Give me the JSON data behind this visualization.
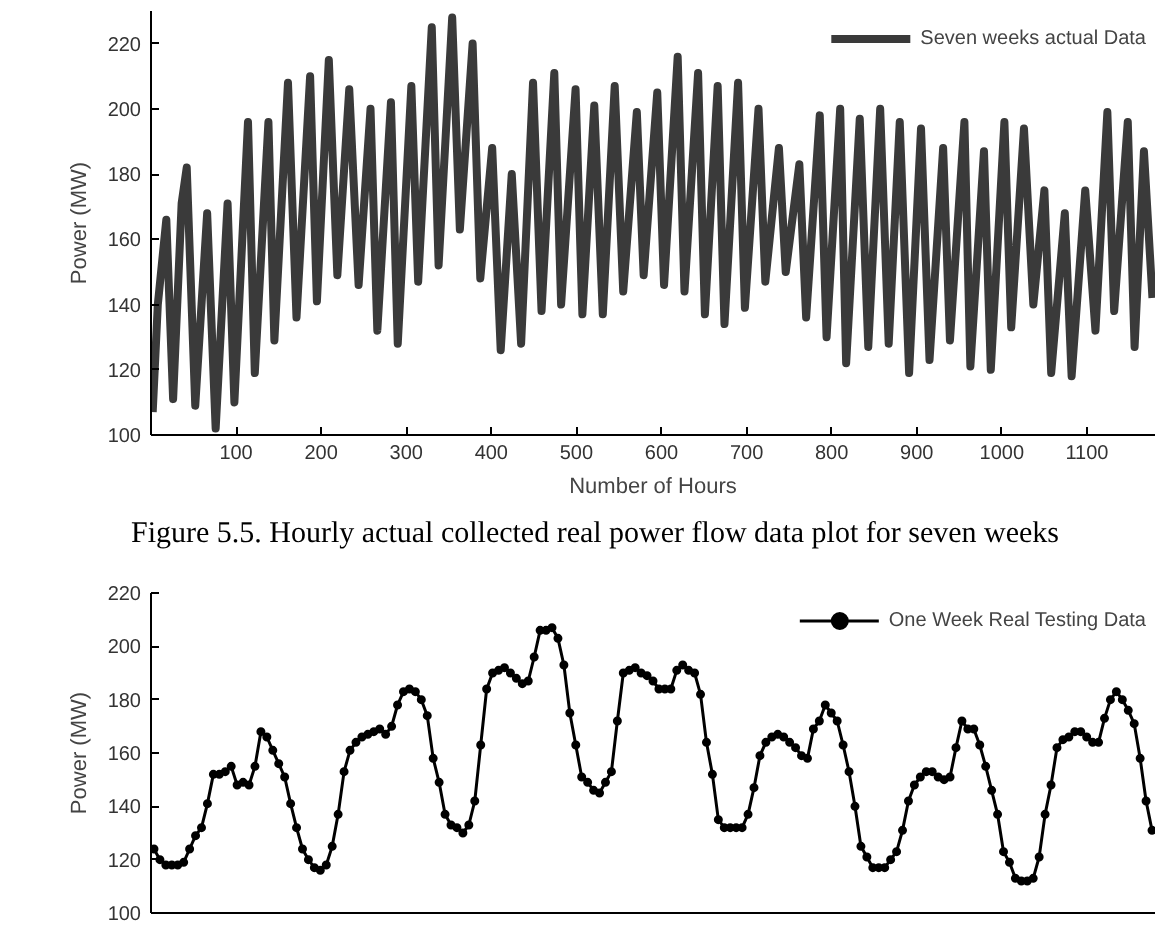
{
  "chart_data": [
    {
      "type": "line",
      "x": [
        2,
        8,
        18,
        26,
        36,
        42,
        52,
        66,
        76,
        90,
        98,
        114,
        122,
        138,
        145,
        161,
        171,
        187,
        195,
        209,
        219,
        233,
        244,
        258,
        266,
        282,
        290,
        306,
        314,
        330,
        338,
        354,
        363,
        378,
        387,
        401,
        411,
        424,
        435,
        449,
        459,
        474,
        482,
        499,
        507,
        521,
        531,
        545,
        555,
        571,
        579,
        595,
        603,
        619,
        627,
        643,
        651,
        666,
        674,
        690,
        698,
        714,
        722,
        738,
        746,
        762,
        770,
        786,
        794,
        810,
        817,
        833,
        843,
        857,
        867,
        880,
        891,
        905,
        915,
        931,
        939,
        956,
        963,
        979,
        987,
        1003,
        1011,
        1026,
        1037,
        1050,
        1058,
        1074,
        1082,
        1098,
        1110,
        1124,
        1132,
        1148,
        1156,
        1167,
        1177
      ],
      "series": [
        {
          "name": "Seven weeks actual Data",
          "color": "#3a3a3a",
          "values": [
            107,
            140,
            166,
            111,
            171,
            182,
            109,
            168,
            102,
            171,
            110,
            196,
            119,
            196,
            129,
            208,
            136,
            210,
            141,
            215,
            149,
            206,
            146,
            200,
            132,
            202,
            128,
            207,
            147,
            225,
            152,
            228,
            163,
            220,
            148,
            188,
            126,
            180,
            128,
            208,
            138,
            211,
            140,
            206,
            137,
            201,
            137,
            207,
            144,
            199,
            149,
            205,
            146,
            216,
            144,
            211,
            137,
            207,
            134,
            208,
            139,
            200,
            147,
            188,
            150,
            183,
            136,
            198,
            130,
            200,
            122,
            197,
            127,
            200,
            128,
            196,
            119,
            194,
            123,
            188,
            129,
            196,
            121,
            187,
            120,
            196,
            133,
            194,
            140,
            175,
            119,
            168,
            118,
            175,
            132,
            199,
            138,
            196,
            127,
            187,
            142
          ]
        }
      ],
      "xlabel": "Number of Hours",
      "ylabel": "Power (MW)",
      "xlim": [
        0,
        1180
      ],
      "ylim": [
        100,
        230
      ],
      "xticks": [
        100,
        200,
        300,
        400,
        500,
        600,
        700,
        800,
        900,
        1000,
        1100
      ],
      "yticks": [
        100,
        120,
        140,
        160,
        180,
        200,
        220
      ],
      "grid": false,
      "legend": "top right",
      "marker": "none",
      "line_style": "solid",
      "annotations": [
        "Figure 5.5. Hourly actual collected real power flow data plot for seven weeks"
      ]
    },
    {
      "type": "line",
      "categories": [
        null,
        null,
        null,
        null,
        null,
        null,
        null,
        null,
        null,
        null,
        null,
        null,
        null,
        null,
        null,
        null,
        null,
        null,
        null,
        null,
        null,
        null,
        null,
        null,
        null,
        null,
        null,
        null,
        null,
        null,
        null,
        null,
        null,
        null,
        null,
        null,
        null,
        null,
        null,
        null,
        null,
        null,
        null,
        null,
        null,
        null,
        null,
        null,
        null,
        null,
        null,
        null,
        null,
        null,
        null,
        null,
        null,
        null,
        null,
        null,
        null,
        null,
        null,
        null,
        null,
        null,
        null,
        null,
        null,
        null,
        null,
        null,
        null,
        null,
        null,
        null,
        null,
        null,
        null,
        null,
        null,
        null,
        null,
        null,
        null,
        null,
        null,
        null,
        null,
        null,
        null,
        null,
        null,
        null,
        null,
        null,
        null,
        null,
        null,
        null,
        null,
        null,
        null,
        null,
        null,
        null,
        null,
        null,
        null,
        null,
        null,
        null,
        null,
        null,
        null,
        null,
        null,
        null,
        null,
        null,
        null,
        null,
        null,
        null,
        null,
        null,
        null,
        null,
        null,
        null,
        null,
        null,
        null,
        null,
        null,
        null,
        null,
        null,
        null,
        null,
        null,
        null,
        null,
        null,
        null,
        null,
        null,
        null,
        null,
        null,
        null,
        null,
        null,
        null,
        null,
        null,
        null,
        null,
        null,
        null,
        null,
        null,
        null,
        null,
        null,
        null,
        null,
        null,
        null
      ],
      "series": [
        {
          "name": "One Week Real Testing Data",
          "color": "#000000",
          "values": [
            124,
            120,
            118,
            118,
            118,
            119,
            124,
            129,
            132,
            141,
            152,
            152,
            153,
            155,
            148,
            149,
            148,
            155,
            168,
            166,
            161,
            156,
            151,
            141,
            132,
            124,
            120,
            117,
            116,
            118,
            125,
            137,
            153,
            161,
            164,
            166,
            167,
            168,
            169,
            167,
            170,
            178,
            183,
            184,
            183,
            180,
            174,
            158,
            149,
            137,
            133,
            132,
            130,
            133,
            142,
            163,
            184,
            190,
            191,
            192,
            190,
            188,
            186,
            187,
            196,
            206,
            206,
            207,
            203,
            193,
            175,
            163,
            151,
            149,
            146,
            145,
            149,
            153,
            172,
            190,
            191,
            192,
            190,
            189,
            187,
            184,
            184,
            184,
            191,
            193,
            191,
            190,
            182,
            164,
            152,
            135,
            132,
            132,
            132,
            132,
            137,
            147,
            159,
            164,
            166,
            167,
            166,
            164,
            162,
            159,
            158,
            169,
            172,
            178,
            175,
            172,
            163,
            153,
            140,
            125,
            121,
            117,
            117,
            117,
            120,
            123,
            131,
            142,
            148,
            151,
            153,
            153,
            151,
            150,
            151,
            162,
            172,
            169,
            169,
            163,
            155,
            146,
            137,
            123,
            119,
            113,
            112,
            112,
            113,
            121,
            137,
            148,
            162,
            165,
            166,
            168,
            168,
            166,
            164,
            164,
            173,
            180,
            183,
            180,
            176,
            171,
            158,
            142,
            131
          ]
        }
      ],
      "ylabel": "Power (MW)",
      "ylim": [
        100,
        220
      ],
      "yticks": [
        100,
        120,
        140,
        160,
        180,
        200,
        220
      ],
      "tick_labels": "y",
      "grid": false,
      "legend": "top right",
      "marker": "circle",
      "line_style": "solid"
    }
  ]
}
